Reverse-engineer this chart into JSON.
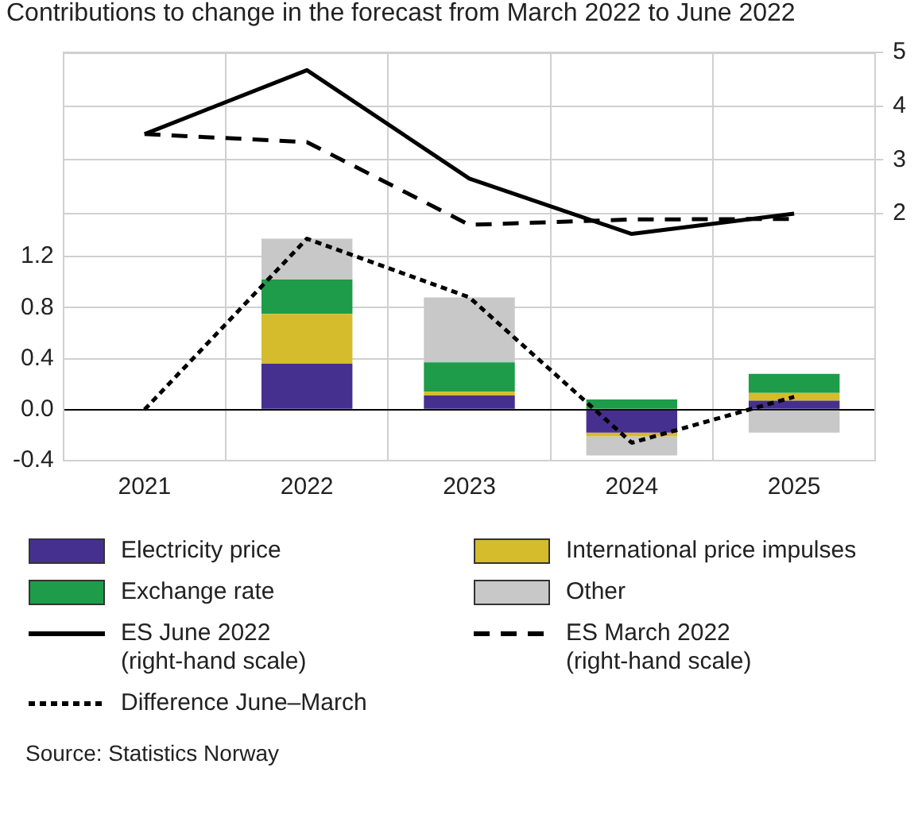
{
  "chart_data": {
    "type": "bar",
    "title": "Contributions to change in the forecast from March 2022 to June 2022",
    "categories": [
      "2021",
      "2022",
      "2023",
      "2024",
      "2025"
    ],
    "stacked": true,
    "grid": true,
    "legend": "bottom",
    "ylim": [
      -0.4,
      2.8
    ],
    "yticks": [
      {
        "value": -0.4,
        "label": "-0.4"
      },
      {
        "value": 0,
        "label": "0.0"
      },
      {
        "value": 0.4,
        "label": "0.4"
      },
      {
        "value": 0.8,
        "label": "0.8"
      },
      {
        "value": 1.2,
        "label": "1.2"
      }
    ],
    "y2lim": [
      -2.6,
      5
    ],
    "y2ticks": [
      2,
      3,
      4,
      5
    ],
    "series": [
      {
        "name": "Electricity price",
        "color": "#46308f",
        "values": [
          null,
          0.36,
          0.11,
          -0.18,
          0.07
        ]
      },
      {
        "name": "International price impulses",
        "color": "#d4bc2c",
        "values": [
          null,
          0.39,
          0.03,
          -0.03,
          0.06
        ]
      },
      {
        "name": "Exchange rate",
        "color": "#1e9c4a",
        "values": [
          null,
          0.27,
          0.23,
          0.08,
          0.15
        ]
      },
      {
        "name": "Other",
        "color": "#c8c8c8",
        "values": [
          null,
          0.32,
          0.51,
          -0.15,
          -0.18
        ]
      },
      {
        "name": "ES June 2022\n(right-hand scale)",
        "type": "line",
        "axis": "y2",
        "color": "#000000",
        "line_style": "solid",
        "values": [
          3.48,
          4.67,
          2.65,
          1.62,
          2.0
        ]
      },
      {
        "name": "ES March 2022\n(right-hand scale)",
        "type": "line",
        "axis": "y2",
        "color": "#000000",
        "line_style": "dashed",
        "values": [
          3.48,
          3.33,
          1.79,
          1.89,
          1.9
        ]
      },
      {
        "name": "Difference June–March",
        "type": "line",
        "color": "#000000",
        "line_style": "dotted",
        "values": [
          0,
          1.34,
          0.88,
          -0.26,
          0.1
        ]
      }
    ],
    "annotations": [
      "Source: Statistics Norway"
    ]
  }
}
